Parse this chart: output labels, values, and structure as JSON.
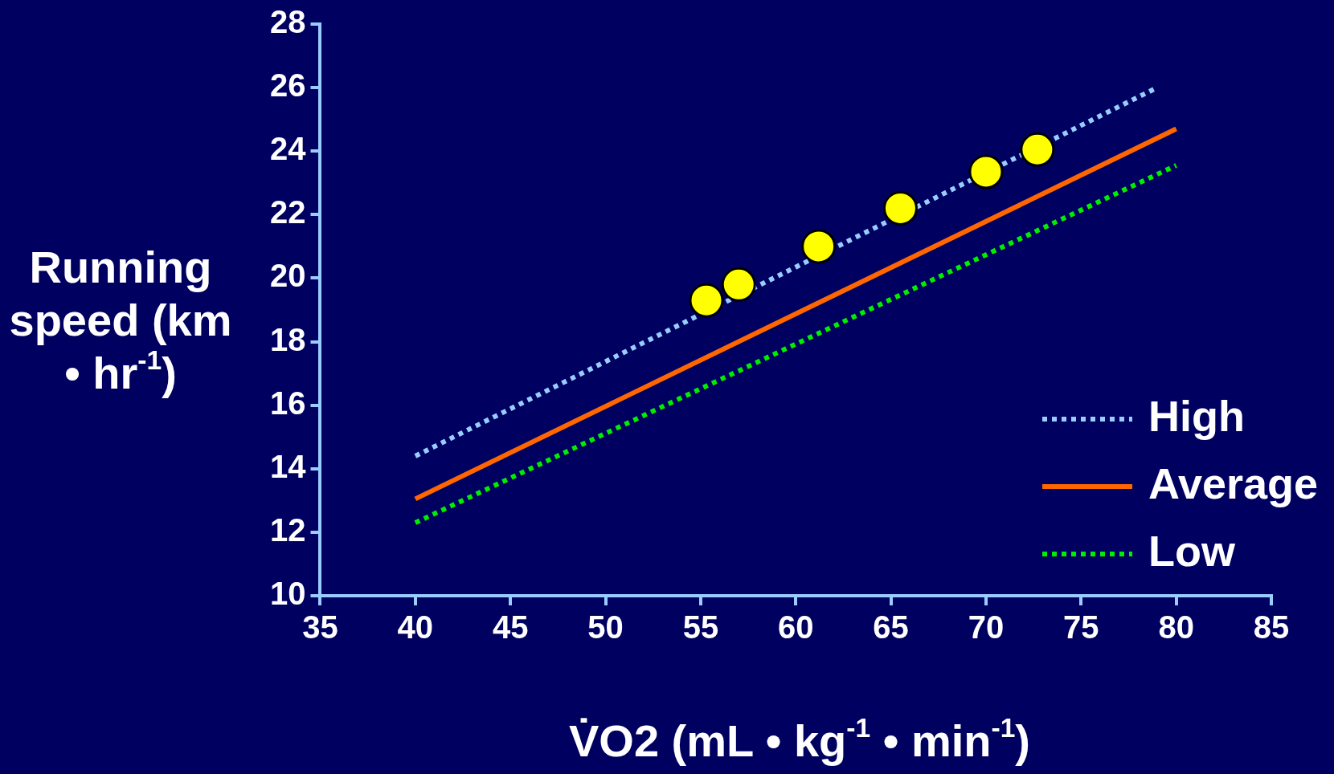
{
  "chart_data": {
    "type": "line",
    "xlabel": "V̇O2 (mL • kg$^{-1}$ • min$^{-1}$)",
    "ylabel": "Running speed (km • hr$^{-1}$)",
    "xlim": [
      35,
      85
    ],
    "xticks": [
      35,
      40,
      45,
      50,
      55,
      60,
      65,
      70,
      75,
      80,
      85
    ],
    "ylim": [
      10,
      28
    ],
    "yticks": [
      10,
      12,
      14,
      16,
      18,
      20,
      22,
      24,
      26,
      28
    ],
    "grid": false,
    "legend": "bottom right",
    "marker": "none",
    "series": [
      {
        "name": "High",
        "color": "#99ccff",
        "line_style": "dotted",
        "x": [
          40,
          79
        ],
        "values": [
          14.4,
          26
        ]
      },
      {
        "name": "Average",
        "color": "#ff6600",
        "line_style": "solid",
        "x": [
          40,
          80
        ],
        "values": [
          13.05,
          24.7
        ]
      },
      {
        "name": "Low",
        "color": "#00ee00",
        "line_style": "dotted",
        "x": [
          40,
          80
        ],
        "values": [
          12.3,
          23.55
        ]
      },
      {
        "type": "scatter",
        "color": "#ffff00",
        "marker": "circle",
        "x": [
          55.3,
          57,
          61.2,
          65.5,
          70,
          72.7
        ],
        "values": [
          19.3,
          19.8,
          21,
          22.2,
          23.35,
          24.05
        ]
      }
    ]
  }
}
